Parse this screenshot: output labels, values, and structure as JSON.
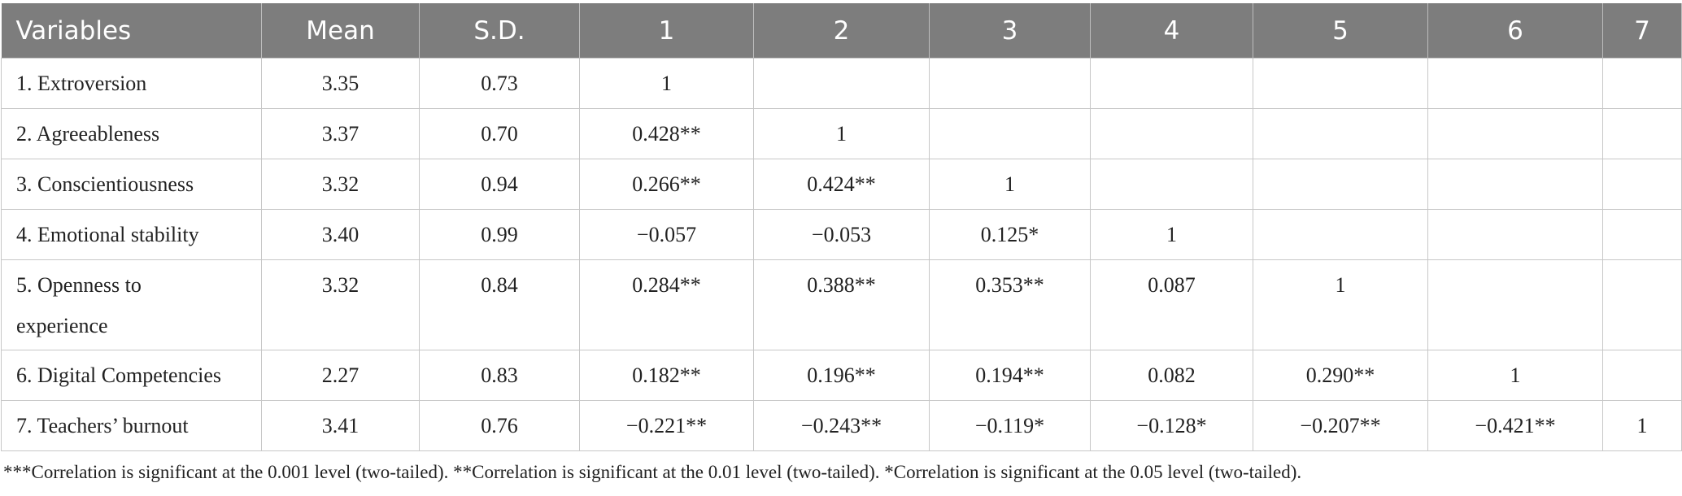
{
  "headers": [
    "Variables",
    "Mean",
    "S.D.",
    "1",
    "2",
    "3",
    "4",
    "5",
    "6",
    "7"
  ],
  "rows": [
    [
      "1. Extroversion",
      "3.35",
      "0.73",
      "1",
      "",
      "",
      "",
      "",
      "",
      ""
    ],
    [
      "2. Agreeableness",
      "3.37",
      "0.70",
      "0.428**",
      "1",
      "",
      "",
      "",
      "",
      ""
    ],
    [
      "3. Conscientiousness",
      "3.32",
      "0.94",
      "0.266**",
      "0.424**",
      "1",
      "",
      "",
      "",
      ""
    ],
    [
      "4. Emotional stability",
      "3.40",
      "0.99",
      "−0.057",
      "−0.053",
      "0.125*",
      "1",
      "",
      "",
      ""
    ],
    [
      "5. Openness to experience",
      "3.32",
      "0.84",
      "0.284**",
      "0.388**",
      "0.353**",
      "0.087",
      "1",
      "",
      ""
    ],
    [
      "6. Digital Competencies",
      "2.27",
      "0.83",
      "0.182**",
      "0.196**",
      "0.194**",
      "0.082",
      "0.290**",
      "1",
      ""
    ],
    [
      "7. Teachers’ burnout",
      "3.41",
      "0.76",
      "−0.221**",
      "−0.243**",
      "−0.119*",
      "−0.128*",
      "−0.207**",
      "−0.421**",
      "1"
    ]
  ],
  "row5_label_lines": [
    "5. Openness to",
    "experience"
  ],
  "note": "***Correlation is significant at the 0.001 level (two-tailed). **Correlation is significant at the 0.01 level (two-tailed). *Correlation is significant at the 0.05 level (two-tailed).",
  "colors": {
    "header_bg": "#7d7d7d",
    "header_text": "#ffffff",
    "border": "#c7c7c7"
  }
}
